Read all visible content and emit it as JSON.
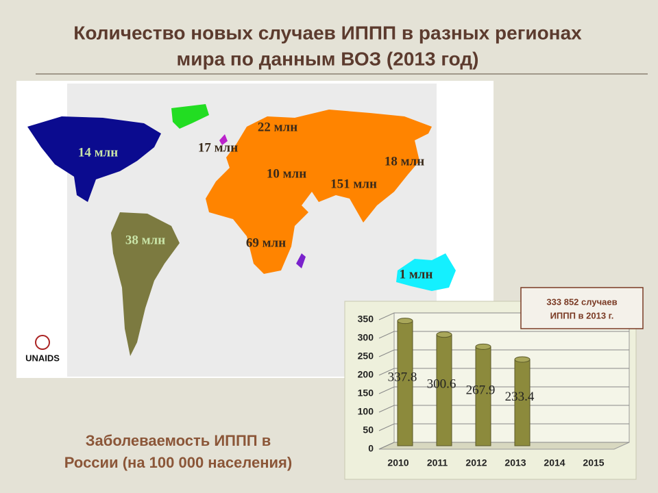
{
  "header": {
    "title_lines": [
      "Количество  новых  случаев ИППП  в  разных  регионах",
      "мира  по  данным  ВОЗ  (2013 год)"
    ]
  },
  "map": {
    "labels": [
      "22 млн",
      "17 млн",
      "14 млн",
      "18 млн",
      "10 млн",
      "151 млн",
      "38 млн",
      "69 млн",
      "1 млн"
    ],
    "logo": "UNAIDS"
  },
  "callout": {
    "lines": [
      "333 852  случаев",
      "ИППП  в  2013 г."
    ]
  },
  "footer": {
    "lines": [
      "Заболеваемость  ИППП в",
      "России  (на 100 000 населения)"
    ]
  },
  "chart_data": {
    "type": "bar",
    "categories": [
      "2010",
      "2011",
      "2012",
      "2013",
      "2014",
      "2015"
    ],
    "values": [
      337.8,
      300.6,
      267.9,
      233.4,
      null,
      null
    ],
    "color": "#8c8a3c",
    "ylim": [
      0,
      350
    ],
    "yticks": [
      0,
      50,
      100,
      150,
      200,
      250,
      300,
      350
    ],
    "grid": true
  }
}
